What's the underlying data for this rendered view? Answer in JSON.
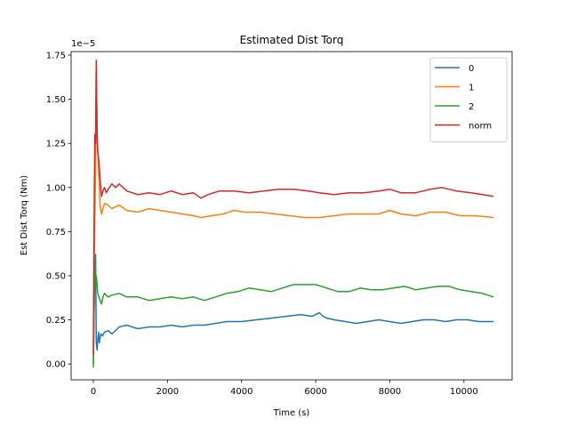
{
  "chart_data": {
    "type": "line",
    "title": "Estimated Dist Torq",
    "xlabel": "Time (s)",
    "ylabel": "Est Dist Torq (Nm)",
    "y_offset_label": "1e−5",
    "xlim": [
      -600,
      11300
    ],
    "ylim": [
      -0.09,
      1.77
    ],
    "x_ticks": [
      0,
      2000,
      4000,
      6000,
      8000,
      10000
    ],
    "x_tick_labels": [
      "0",
      "2000",
      "4000",
      "6000",
      "8000",
      "10000"
    ],
    "y_ticks": [
      0.0,
      0.25,
      0.5,
      0.75,
      1.0,
      1.25,
      1.5,
      1.75
    ],
    "y_tick_labels": [
      "0.00",
      "0.25",
      "0.50",
      "0.75",
      "1.00",
      "1.25",
      "1.50",
      "1.75"
    ],
    "grid": false,
    "legend_position": "top-right",
    "series": [
      {
        "name": "0",
        "color": "#1f77b4",
        "x": [
          0,
          20,
          40,
          60,
          80,
          100,
          120,
          140,
          160,
          200,
          250,
          300,
          400,
          500,
          700,
          900,
          1200,
          1500,
          1800,
          2100,
          2400,
          2700,
          3000,
          3300,
          3600,
          4000,
          4400,
          4800,
          5200,
          5600,
          5900,
          6100,
          6200,
          6300,
          6500,
          6800,
          7100,
          7400,
          7700,
          8000,
          8300,
          8600,
          8900,
          9200,
          9500,
          9800,
          10100,
          10400,
          10800
        ],
        "values": [
          0.0,
          0.28,
          0.55,
          0.62,
          0.12,
          0.08,
          0.14,
          0.18,
          0.12,
          0.17,
          0.16,
          0.18,
          0.19,
          0.17,
          0.21,
          0.22,
          0.2,
          0.21,
          0.21,
          0.22,
          0.21,
          0.22,
          0.22,
          0.23,
          0.24,
          0.24,
          0.25,
          0.26,
          0.27,
          0.28,
          0.27,
          0.29,
          0.27,
          0.26,
          0.25,
          0.24,
          0.23,
          0.24,
          0.25,
          0.24,
          0.23,
          0.24,
          0.25,
          0.25,
          0.24,
          0.25,
          0.25,
          0.24,
          0.24
        ]
      },
      {
        "name": "1",
        "color": "#ff7f0e",
        "x": [
          0,
          30,
          60,
          80,
          100,
          120,
          150,
          180,
          220,
          260,
          300,
          400,
          500,
          700,
          900,
          1200,
          1500,
          1800,
          2100,
          2400,
          2700,
          2900,
          3200,
          3500,
          3800,
          4100,
          4500,
          4900,
          5300,
          5700,
          6100,
          6500,
          6900,
          7300,
          7700,
          8000,
          8300,
          8700,
          9100,
          9500,
          9900,
          10300,
          10800
        ],
        "values": [
          0.05,
          0.7,
          1.1,
          1.72,
          1.3,
          1.2,
          1.05,
          0.9,
          0.85,
          0.88,
          0.91,
          0.9,
          0.88,
          0.9,
          0.87,
          0.86,
          0.88,
          0.87,
          0.86,
          0.85,
          0.84,
          0.83,
          0.84,
          0.85,
          0.87,
          0.86,
          0.86,
          0.85,
          0.84,
          0.83,
          0.83,
          0.84,
          0.85,
          0.85,
          0.85,
          0.87,
          0.85,
          0.84,
          0.86,
          0.86,
          0.84,
          0.84,
          0.83
        ]
      },
      {
        "name": "2",
        "color": "#2ca02c",
        "x": [
          0,
          20,
          40,
          60,
          80,
          100,
          120,
          150,
          180,
          220,
          260,
          300,
          400,
          500,
          700,
          900,
          1200,
          1500,
          1800,
          2100,
          2400,
          2700,
          3000,
          3300,
          3600,
          3900,
          4200,
          4500,
          4800,
          5100,
          5400,
          5700,
          6000,
          6300,
          6600,
          6900,
          7200,
          7500,
          7800,
          8100,
          8400,
          8700,
          9000,
          9300,
          9600,
          9900,
          10200,
          10500,
          10800
        ],
        "values": [
          -0.02,
          0.3,
          0.58,
          0.45,
          0.5,
          0.45,
          0.4,
          0.38,
          0.36,
          0.34,
          0.38,
          0.4,
          0.38,
          0.39,
          0.4,
          0.38,
          0.38,
          0.36,
          0.37,
          0.38,
          0.37,
          0.38,
          0.36,
          0.38,
          0.4,
          0.41,
          0.43,
          0.42,
          0.41,
          0.43,
          0.45,
          0.45,
          0.45,
          0.43,
          0.41,
          0.41,
          0.43,
          0.42,
          0.42,
          0.43,
          0.44,
          0.42,
          0.43,
          0.44,
          0.44,
          0.42,
          0.41,
          0.4,
          0.38
        ]
      },
      {
        "name": "norm",
        "color": "#d62728",
        "x": [
          0,
          20,
          40,
          60,
          80,
          100,
          120,
          150,
          180,
          220,
          260,
          300,
          350,
          400,
          500,
          600,
          700,
          900,
          1200,
          1500,
          1800,
          2100,
          2400,
          2700,
          2900,
          3100,
          3400,
          3800,
          4200,
          4600,
          5000,
          5400,
          5800,
          6100,
          6500,
          6900,
          7300,
          7700,
          8000,
          8300,
          8700,
          9100,
          9400,
          9800,
          10200,
          10500,
          10800
        ],
        "values": [
          0.05,
          0.8,
          1.3,
          1.25,
          1.72,
          1.3,
          1.2,
          1.15,
          1.05,
          0.95,
          0.98,
          1.0,
          0.97,
          0.99,
          1.02,
          1.0,
          1.02,
          0.98,
          0.96,
          0.97,
          0.96,
          0.98,
          0.96,
          0.97,
          0.94,
          0.96,
          0.98,
          0.98,
          0.97,
          0.98,
          0.99,
          0.99,
          0.98,
          0.97,
          0.96,
          0.97,
          0.97,
          0.98,
          0.99,
          0.97,
          0.97,
          0.99,
          1.0,
          0.98,
          0.97,
          0.96,
          0.95
        ]
      }
    ]
  }
}
